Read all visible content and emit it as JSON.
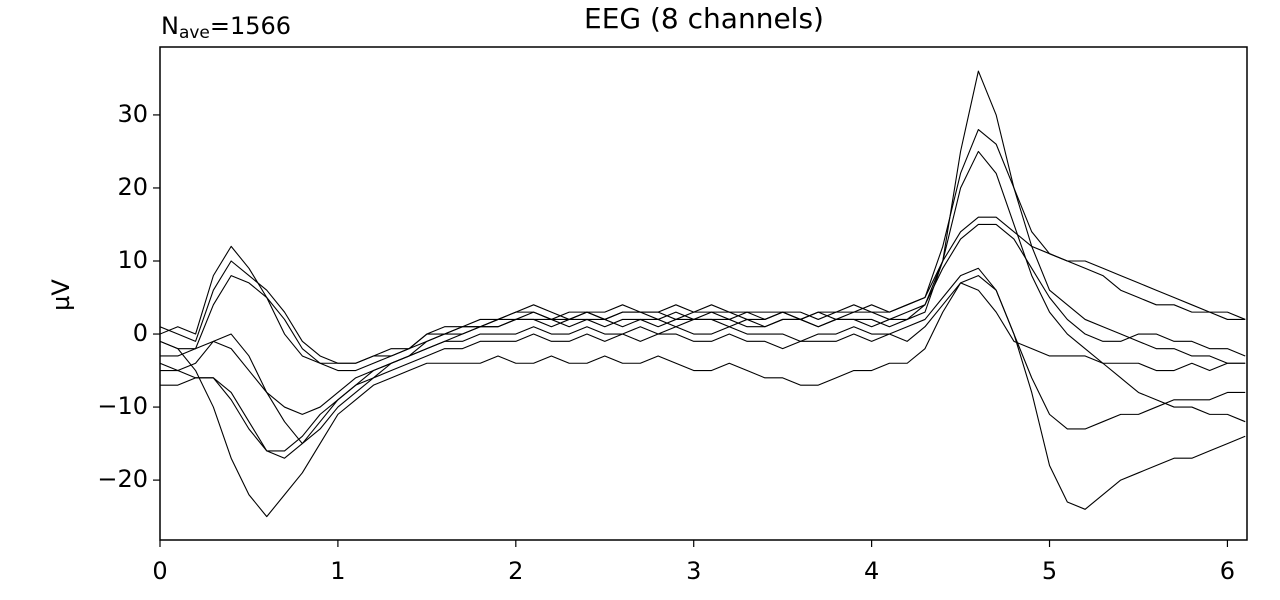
{
  "chart_data": {
    "type": "line",
    "title": "EEG (8 channels)",
    "annotation": {
      "symbol": "N",
      "subscript": "ave",
      "text": "=1566"
    },
    "y_label": "µV",
    "x": [
      0,
      0.1,
      0.2,
      0.3,
      0.4,
      0.5,
      0.6,
      0.7,
      0.8,
      0.9,
      1.0,
      1.1,
      1.2,
      1.3,
      1.4,
      1.5,
      1.6,
      1.7,
      1.8,
      1.9,
      2.0,
      2.1,
      2.2,
      2.3,
      2.4,
      2.5,
      2.6,
      2.7,
      2.8,
      2.9,
      3.0,
      3.1,
      3.2,
      3.3,
      3.4,
      3.5,
      3.6,
      3.7,
      3.8,
      3.9,
      4.0,
      4.1,
      4.2,
      4.3,
      4.4,
      4.5,
      4.6,
      4.7,
      4.8,
      4.9,
      5.0,
      5.1,
      5.2,
      5.3,
      5.4,
      5.5,
      5.6,
      5.7,
      5.8,
      5.9,
      6.0,
      6.1
    ],
    "series": [
      {
        "color": "#000000",
        "values": [
          0,
          1,
          0,
          8,
          12,
          9,
          5,
          0,
          -3,
          -4,
          -4,
          -4,
          -3,
          -2,
          -2,
          0,
          0,
          1,
          1,
          2,
          2,
          3,
          2,
          2,
          3,
          2,
          3,
          3,
          2,
          3,
          2,
          3,
          3,
          2,
          2,
          3,
          2,
          3,
          2,
          3,
          3,
          2,
          3,
          4,
          10,
          25,
          36,
          30,
          20,
          12,
          6,
          4,
          2,
          1,
          0,
          -1,
          -2,
          -2,
          -3,
          -3,
          -4,
          -4
        ]
      },
      {
        "color": "#000000",
        "values": [
          1,
          0,
          -1,
          6,
          10,
          8,
          6,
          3,
          -1,
          -3,
          -4,
          -4,
          -3,
          -3,
          -2,
          0,
          1,
          1,
          2,
          2,
          3,
          4,
          3,
          2,
          3,
          3,
          4,
          3,
          3,
          2,
          3,
          4,
          3,
          3,
          2,
          3,
          3,
          2,
          3,
          4,
          3,
          3,
          4,
          5,
          12,
          22,
          28,
          26,
          20,
          14,
          11,
          10,
          9,
          8,
          6,
          5,
          4,
          4,
          3,
          3,
          2,
          2
        ]
      },
      {
        "color": "#000000",
        "values": [
          -1,
          -2,
          -2,
          4,
          8,
          7,
          5,
          2,
          -2,
          -4,
          -5,
          -5,
          -4,
          -3,
          -2,
          -1,
          0,
          0,
          1,
          1,
          2,
          2,
          2,
          1,
          2,
          2,
          1,
          2,
          2,
          1,
          2,
          2,
          2,
          1,
          1,
          2,
          2,
          1,
          2,
          2,
          1,
          2,
          2,
          3,
          10,
          20,
          25,
          22,
          15,
          8,
          3,
          0,
          -2,
          -4,
          -6,
          -8,
          -9,
          -10,
          -10,
          -11,
          -11,
          -12
        ]
      },
      {
        "color": "#000000",
        "values": [
          -3,
          -3,
          -2,
          -1,
          -2,
          -5,
          -8,
          -10,
          -11,
          -10,
          -8,
          -6,
          -5,
          -4,
          -3,
          -1,
          0,
          1,
          1,
          2,
          3,
          3,
          2,
          3,
          3,
          2,
          3,
          3,
          3,
          4,
          3,
          3,
          2,
          3,
          3,
          3,
          2,
          3,
          3,
          3,
          4,
          3,
          4,
          5,
          10,
          14,
          16,
          16,
          14,
          12,
          11,
          10,
          10,
          9,
          8,
          7,
          6,
          5,
          4,
          3,
          3,
          2
        ]
      },
      {
        "color": "#000000",
        "values": [
          -4,
          -5,
          -4,
          -1,
          0,
          -3,
          -8,
          -12,
          -15,
          -13,
          -10,
          -8,
          -6,
          -4,
          -3,
          -2,
          -1,
          0,
          1,
          1,
          2,
          2,
          1,
          2,
          2,
          1,
          2,
          2,
          1,
          2,
          2,
          2,
          1,
          2,
          1,
          2,
          2,
          1,
          2,
          2,
          2,
          1,
          2,
          4,
          9,
          13,
          15,
          15,
          13,
          9,
          5,
          2,
          0,
          -1,
          -1,
          0,
          0,
          -1,
          -1,
          -2,
          -2,
          -3
        ]
      },
      {
        "color": "#000000",
        "values": [
          -5,
          -5,
          -6,
          -6,
          -8,
          -12,
          -16,
          -17,
          -15,
          -12,
          -9,
          -7,
          -5,
          -4,
          -3,
          -2,
          -1,
          -1,
          0,
          0,
          0,
          1,
          0,
          0,
          1,
          0,
          0,
          1,
          0,
          1,
          0,
          0,
          1,
          0,
          0,
          0,
          -1,
          0,
          0,
          1,
          0,
          0,
          1,
          2,
          5,
          8,
          9,
          6,
          0,
          -6,
          -11,
          -13,
          -13,
          -12,
          -11,
          -11,
          -10,
          -9,
          -9,
          -9,
          -8,
          -8
        ]
      },
      {
        "color": "#000000",
        "values": [
          -7,
          -7,
          -6,
          -6,
          -9,
          -13,
          -16,
          -16,
          -14,
          -11,
          -9,
          -7,
          -6,
          -5,
          -4,
          -3,
          -2,
          -2,
          -1,
          -1,
          -1,
          0,
          -1,
          -1,
          0,
          -1,
          0,
          -1,
          0,
          0,
          -1,
          -1,
          0,
          -1,
          -1,
          -2,
          -1,
          -1,
          -1,
          0,
          -1,
          0,
          -1,
          1,
          4,
          7,
          8,
          6,
          0,
          -8,
          -18,
          -23,
          -24,
          -22,
          -20,
          -19,
          -18,
          -17,
          -17,
          -16,
          -15,
          -14
        ]
      },
      {
        "color": "#000000",
        "values": [
          -1,
          -2,
          -5,
          -10,
          -17,
          -22,
          -25,
          -22,
          -19,
          -15,
          -11,
          -9,
          -7,
          -6,
          -5,
          -4,
          -4,
          -4,
          -4,
          -3,
          -4,
          -4,
          -3,
          -4,
          -4,
          -3,
          -4,
          -4,
          -3,
          -4,
          -5,
          -5,
          -4,
          -5,
          -6,
          -6,
          -7,
          -7,
          -6,
          -5,
          -5,
          -4,
          -4,
          -2,
          3,
          7,
          6,
          3,
          -1,
          -2,
          -3,
          -3,
          -3,
          -4,
          -4,
          -4,
          -5,
          -5,
          -4,
          -5,
          -4,
          -4
        ]
      }
    ],
    "xlim": [
      0,
      6.11
    ],
    "xticks": [
      0,
      1,
      2,
      3,
      4,
      5,
      6
    ],
    "ylim": [
      -28.2,
      39.3
    ],
    "yticks": [
      {
        "value": -20,
        "label": "−20"
      },
      {
        "value": -10,
        "label": "−10"
      },
      0,
      10,
      20,
      30
    ]
  }
}
